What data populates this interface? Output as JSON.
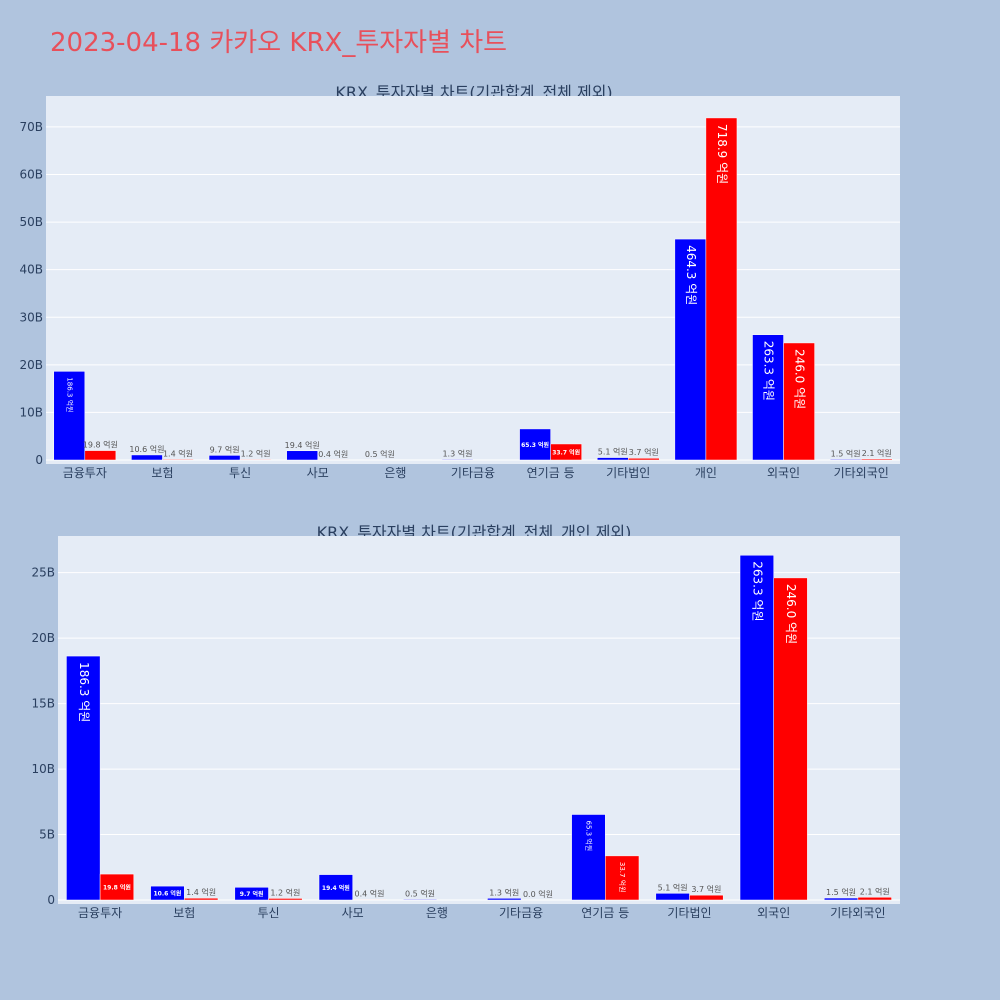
{
  "page": {
    "title": "2023-04-18 카카오 KRX_투자자별 차트"
  },
  "colors": {
    "buy": "#0000FF",
    "sell": "#FF0000",
    "plot_bg": "#E5ECF6",
    "page_bg": "#B0C4DE",
    "title": "#E8505B",
    "text": "#2A3F5F"
  },
  "chart_data": [
    {
      "type": "bar",
      "title": "KRX_투자자별 차트(기관합계_전체 제외)",
      "categories": [
        "금융투자",
        "보험",
        "투신",
        "사모",
        "은행",
        "기타금융",
        "연기금 등",
        "기타법인",
        "개인",
        "외국인",
        "기타외국인"
      ],
      "series": [
        {
          "values": [
            18.63,
            1.06,
            0.97,
            1.94,
            0.05,
            0.13,
            6.53,
            0.51,
            46.43,
            26.33,
            0.15
          ],
          "labels": [
            "186.3 억원",
            "10.6 억원",
            "9.7 억원",
            "19.4 억원",
            "0.5 억원",
            "1.3 억원",
            "65.3 억원",
            "5.1 억원",
            "464.3 억원",
            "263.3 억원",
            "1.5 억원"
          ]
        },
        {
          "values": [
            1.98,
            0.14,
            0.12,
            0.04,
            0,
            0,
            3.37,
            0.37,
            71.89,
            24.6,
            0.21
          ],
          "labels": [
            "19.8 억원",
            "1.4 억원",
            "1.2 억원",
            "0.4 억원",
            "",
            "",
            "33.7 억원",
            "3.7 억원",
            "718.9 억원",
            "246.0 억원",
            "2.1 억원"
          ]
        }
      ],
      "ylim": [
        0,
        76.5
      ],
      "yticks": [
        0,
        10,
        20,
        30,
        40,
        50,
        60,
        70
      ],
      "ytick_labels": [
        "0",
        "10B",
        "20B",
        "30B",
        "40B",
        "50B",
        "60B",
        "70B"
      ],
      "grid": true
    },
    {
      "type": "bar",
      "title": "KRX_투자자별 차트(기관합계_전체_개인 제외)",
      "categories": [
        "금융투자",
        "보험",
        "투신",
        "사모",
        "은행",
        "기타금융",
        "연기금 등",
        "기타법인",
        "외국인",
        "기타외국인"
      ],
      "series": [
        {
          "values": [
            18.63,
            1.06,
            0.97,
            1.94,
            0.05,
            0.13,
            6.53,
            0.51,
            26.33,
            0.15
          ],
          "labels": [
            "186.3 억원",
            "10.6 억원",
            "9.7 억원",
            "19.4 억원",
            "0.5 억원",
            "1.3 억원",
            "65.3 억원",
            "5.1 억원",
            "263.3 억원",
            "1.5 억원"
          ]
        },
        {
          "values": [
            1.98,
            0.14,
            0.12,
            0.04,
            0,
            0,
            3.37,
            0.37,
            24.6,
            0.21
          ],
          "labels": [
            "19.8 억원",
            "1.4 억원",
            "1.2 억원",
            "0.4 억원",
            "",
            "0.0 억원",
            "33.7 억원",
            "3.7 억원",
            "246.0 억원",
            "2.1 억원"
          ]
        }
      ],
      "ylim": [
        0,
        27.8
      ],
      "yticks": [
        0,
        5,
        10,
        15,
        20,
        25
      ],
      "ytick_labels": [
        "0",
        "5B",
        "10B",
        "15B",
        "20B",
        "25B"
      ],
      "grid": true
    }
  ]
}
